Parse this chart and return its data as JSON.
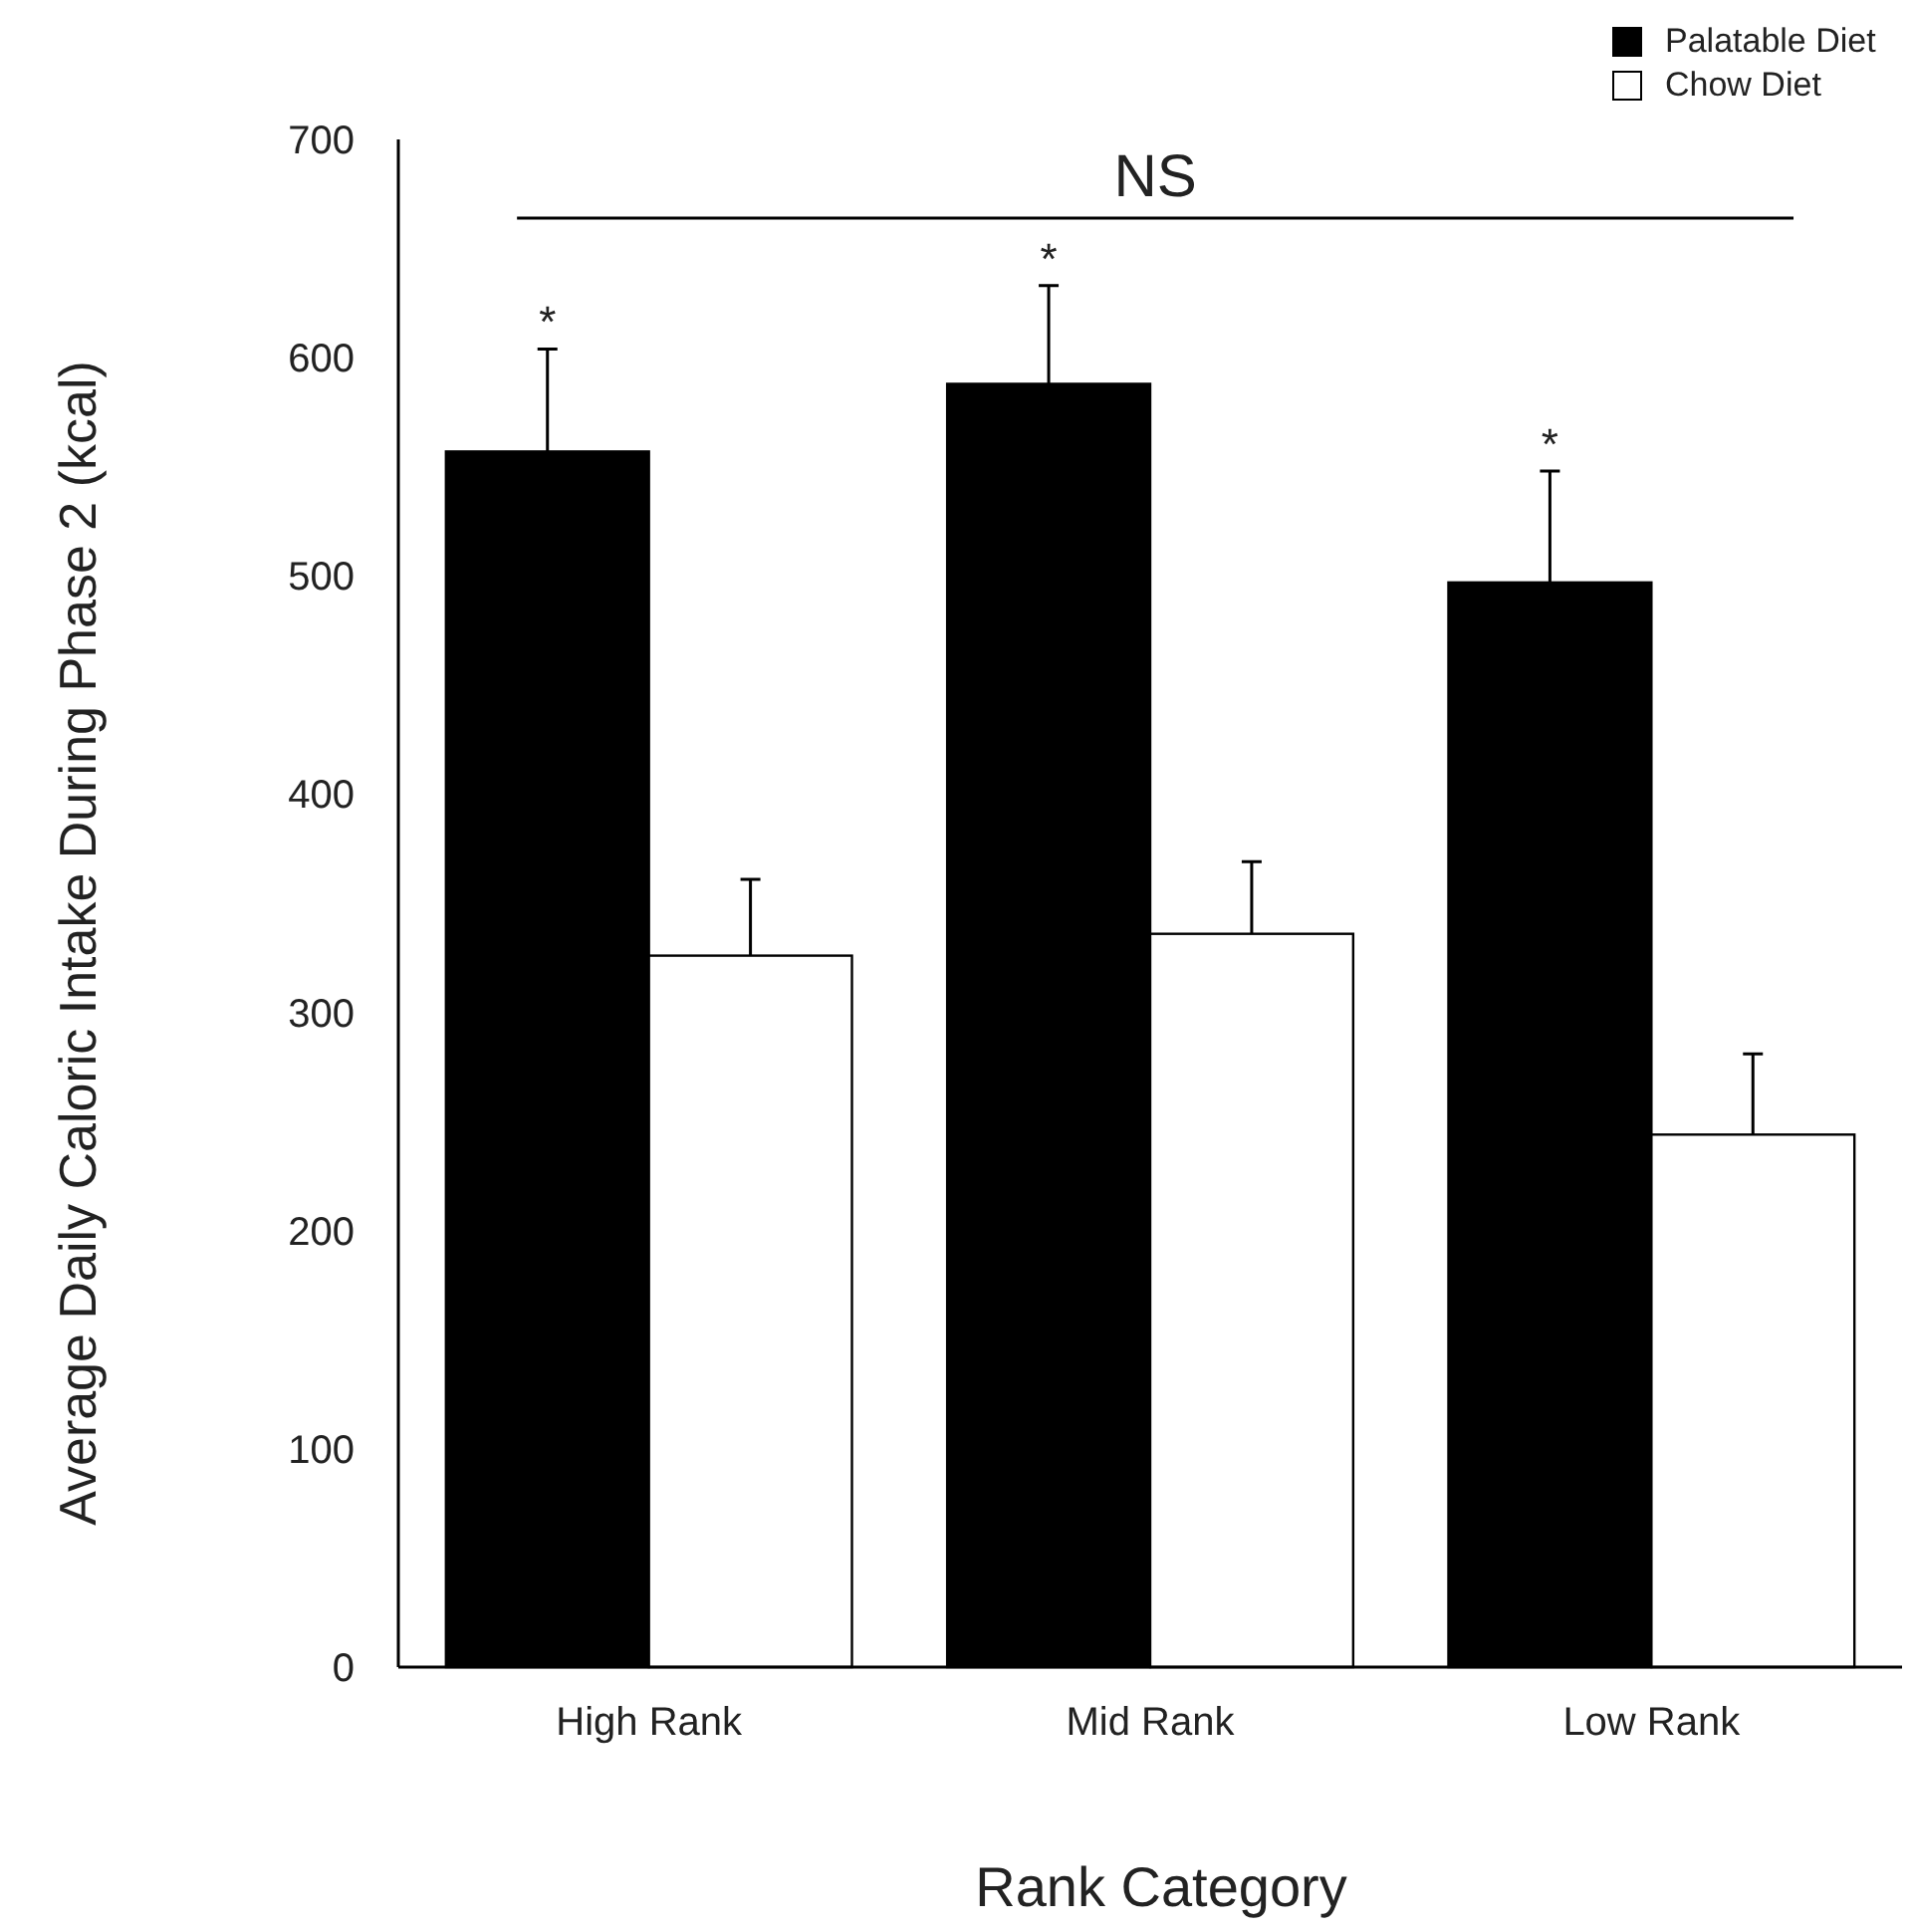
{
  "chart_data": {
    "type": "bar",
    "ylabel": "Average Daily Caloric Intake During Phase 2  (kcal)",
    "xlabel": "Rank Category",
    "categories": [
      "High Rank",
      "Mid Rank",
      "Low Rank"
    ],
    "series": [
      {
        "name": "Palatable Diet",
        "color": "#000000",
        "values": [
          557,
          588,
          497
        ],
        "errors": [
          [
            557,
            604
          ],
          [
            588,
            633
          ],
          [
            497,
            548
          ]
        ]
      },
      {
        "name": "Chow Diet",
        "color": "#ffffff",
        "values": [
          326,
          336,
          244
        ],
        "errors": [
          [
            326,
            361
          ],
          [
            336,
            369
          ],
          [
            244,
            281
          ]
        ]
      }
    ],
    "ylim": [
      0,
      700
    ],
    "yticks": [
      0,
      100,
      200,
      300,
      400,
      500,
      600,
      700
    ],
    "grid": false,
    "legend": "top right",
    "ref_lines": [
      {
        "axis": "y",
        "value": 664,
        "label": "NS"
      }
    ],
    "annotations": [
      "*",
      "*",
      "*"
    ]
  }
}
